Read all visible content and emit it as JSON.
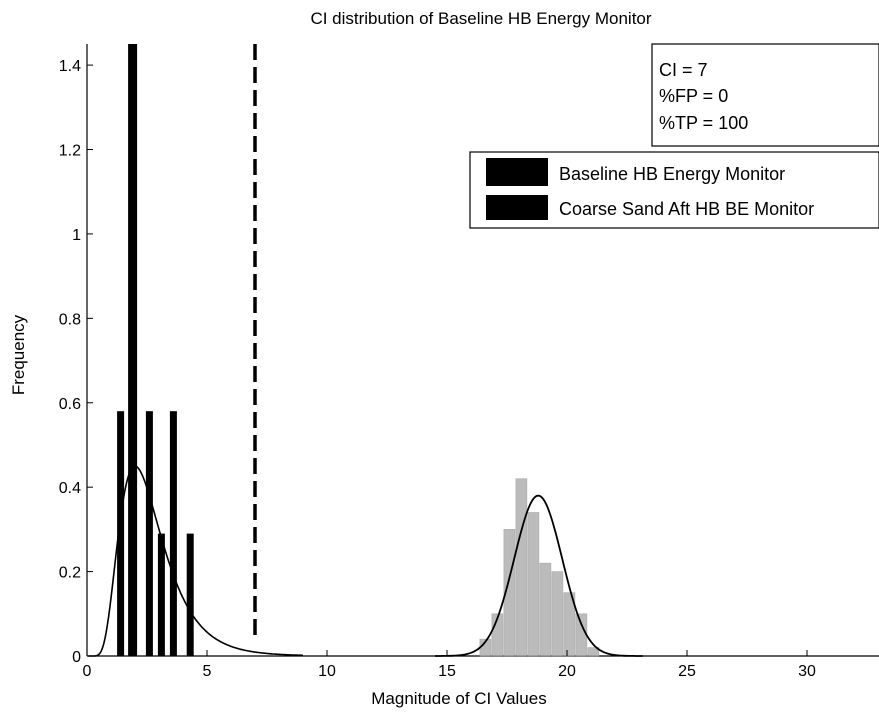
{
  "chart_data": {
    "type": "bar",
    "title": "CI distribution of Baseline HB Energy Monitor",
    "xlabel": "Magnitude of CI Values",
    "ylabel": "Frequency",
    "xlim": [
      0,
      33
    ],
    "ylim": [
      0,
      1.45
    ],
    "xticks": [
      "0",
      "5",
      "10",
      "15",
      "20",
      "25",
      "30"
    ],
    "yticks": [
      "0",
      "0.2",
      "0.4",
      "0.6",
      "0.8",
      "1",
      "1.2",
      "1.4"
    ],
    "grid": false,
    "legend_position": "top-right",
    "threshold": {
      "x": 7,
      "style": "dashed"
    },
    "annotation": [
      "CI = 7",
      "%FP = 0",
      "%TP = 100"
    ],
    "series": [
      {
        "name": "Baseline HB Energy Monitor",
        "color": "#000000",
        "bars": [
          {
            "x": 1.4,
            "y": 0.58
          },
          {
            "x": 1.9,
            "y": 1.45
          },
          {
            "x": 2.6,
            "y": 0.58
          },
          {
            "x": 3.1,
            "y": 0.29
          },
          {
            "x": 3.6,
            "y": 0.58
          },
          {
            "x": 4.3,
            "y": 0.29
          }
        ],
        "fit": {
          "type": "lognormal",
          "peak_x": 2.0,
          "peak_y": 0.45
        }
      },
      {
        "name": "Coarse Sand Aft HB BE Monitor",
        "color": "#b0b0b0",
        "bars": [
          {
            "x": 16.6,
            "y": 0.04
          },
          {
            "x": 17.1,
            "y": 0.1
          },
          {
            "x": 17.6,
            "y": 0.3
          },
          {
            "x": 18.1,
            "y": 0.42
          },
          {
            "x": 18.6,
            "y": 0.34
          },
          {
            "x": 19.1,
            "y": 0.22
          },
          {
            "x": 19.6,
            "y": 0.2
          },
          {
            "x": 20.1,
            "y": 0.15
          },
          {
            "x": 20.6,
            "y": 0.1
          },
          {
            "x": 21.1,
            "y": 0.02
          }
        ],
        "fit": {
          "type": "normal",
          "mean": 18.8,
          "peak_y": 0.38,
          "sd": 1.0
        }
      }
    ]
  }
}
